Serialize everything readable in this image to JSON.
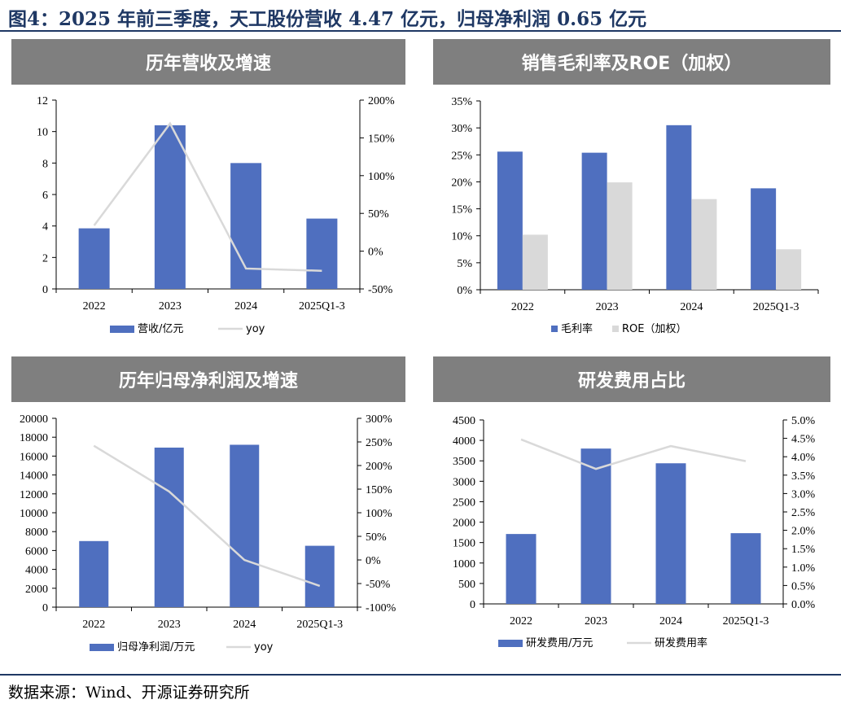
{
  "figure": {
    "title": "图4：2025 年前三季度，天工股份营收 4.47 亿元，归母净利润 0.65 亿元",
    "source": "数据来源：Wind、开源证券研究所"
  },
  "colors": {
    "bar": "#4f6fbf",
    "line": "#d9d9d9",
    "bar2": "#d9d9d9",
    "banner": "#7f7f7f",
    "title": "#1f3864"
  },
  "chart_data": [
    {
      "id": "revenue",
      "type": "bar",
      "title": "历年营收及增速",
      "categories": [
        "2022",
        "2023",
        "2024",
        "2025Q1-3"
      ],
      "left_axis": {
        "min": 0,
        "max": 12,
        "step": 2,
        "ticks": [
          "0",
          "2",
          "4",
          "6",
          "8",
          "10",
          "12"
        ]
      },
      "right_axis": {
        "min": -50,
        "max": 200,
        "step": 50,
        "ticks": [
          "-50%",
          "0%",
          "50%",
          "100%",
          "150%",
          "200%"
        ]
      },
      "series": [
        {
          "name": "营收/亿元",
          "kind": "bar",
          "axis": "left",
          "values": [
            3.85,
            10.4,
            8.0,
            4.47
          ]
        },
        {
          "name": "yoy",
          "kind": "line",
          "axis": "right",
          "values": [
            34,
            169,
            -23,
            -26
          ]
        }
      ],
      "legend": "bottom"
    },
    {
      "id": "margin",
      "type": "bar",
      "title": "销售毛利率及ROE（加权）",
      "categories": [
        "2022",
        "2023",
        "2024",
        "2025Q1-3"
      ],
      "left_axis": {
        "min": 0,
        "max": 35,
        "step": 5,
        "ticks": [
          "0%",
          "5%",
          "10%",
          "15%",
          "20%",
          "25%",
          "30%",
          "35%"
        ]
      },
      "series": [
        {
          "name": "毛利率",
          "kind": "bar",
          "axis": "left",
          "values": [
            25.6,
            25.4,
            30.5,
            18.8
          ]
        },
        {
          "name": "ROE（加权）",
          "kind": "bar2",
          "axis": "left",
          "values": [
            10.2,
            19.9,
            16.8,
            7.5
          ]
        }
      ],
      "legend": "bottom"
    },
    {
      "id": "netprofit",
      "type": "bar",
      "title": "历年归母净利润及增速",
      "categories": [
        "2022",
        "2023",
        "2024",
        "2025Q1-3"
      ],
      "left_axis": {
        "min": 0,
        "max": 20000,
        "step": 2000,
        "ticks": [
          "0",
          "2000",
          "4000",
          "6000",
          "8000",
          "10000",
          "12000",
          "14000",
          "16000",
          "18000",
          "20000"
        ]
      },
      "right_axis": {
        "min": -100,
        "max": 300,
        "step": 50,
        "ticks": [
          "-100%",
          "-50%",
          "0%",
          "50%",
          "100%",
          "150%",
          "200%",
          "250%",
          "300%"
        ]
      },
      "series": [
        {
          "name": "归母净利润/万元",
          "kind": "bar",
          "axis": "left",
          "values": [
            7000,
            16900,
            17200,
            6500
          ]
        },
        {
          "name": "yoy",
          "kind": "line",
          "axis": "right",
          "values": [
            242,
            145,
            0,
            -55
          ]
        }
      ],
      "legend": "bottom"
    },
    {
      "id": "rnd",
      "type": "bar",
      "title": "研发费用占比",
      "categories": [
        "2022",
        "2023",
        "2024",
        "2025Q1-3"
      ],
      "left_axis": {
        "min": 0,
        "max": 4500,
        "step": 500,
        "ticks": [
          "0",
          "500",
          "1000",
          "1500",
          "2000",
          "2500",
          "3000",
          "3500",
          "4000",
          "4500"
        ]
      },
      "right_axis": {
        "min": 0,
        "max": 5,
        "step": 0.5,
        "ticks": [
          "0.0%",
          "0.5%",
          "1.0%",
          "1.5%",
          "2.0%",
          "2.5%",
          "3.0%",
          "3.5%",
          "4.0%",
          "4.5%",
          "5.0%"
        ]
      },
      "series": [
        {
          "name": "研发费用/万元",
          "kind": "bar",
          "axis": "left",
          "values": [
            1710,
            3800,
            3440,
            1730
          ]
        },
        {
          "name": "研发费用率",
          "kind": "line",
          "axis": "right",
          "values": [
            4.47,
            3.67,
            4.29,
            3.88
          ]
        }
      ],
      "legend": "bottom"
    }
  ]
}
